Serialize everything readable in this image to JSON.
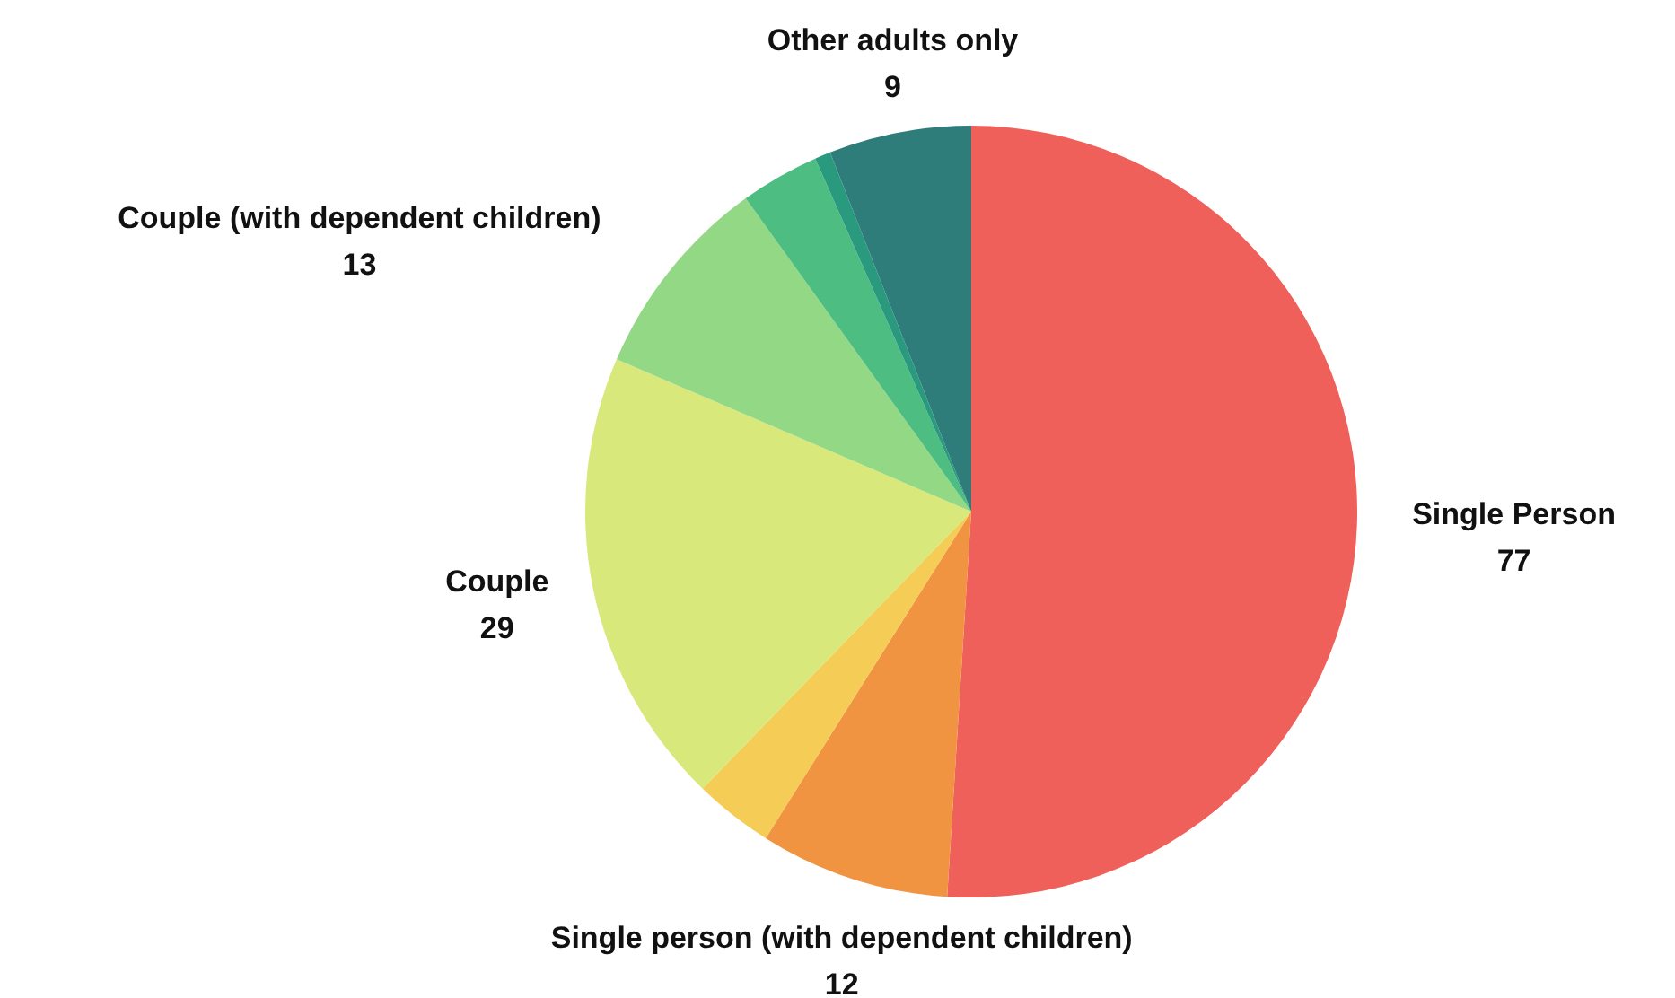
{
  "chart_data": {
    "type": "pie",
    "categories": [
      "Single Person",
      "Single person (with dependent children)",
      null,
      "Couple",
      "Couple (with dependent children)",
      null,
      null,
      "Other adults only"
    ],
    "values": [
      77,
      12,
      5,
      29,
      13,
      5,
      1,
      9
    ],
    "value_labels": [
      "77",
      "12",
      null,
      "29",
      "13",
      null,
      null,
      "9"
    ],
    "colors": [
      "#f0605a",
      "#f09442",
      "#f5cc55",
      "#d9e87a",
      "#93d985",
      "#4dbd82",
      "#2a9a7e",
      "#2e7d7b"
    ]
  }
}
